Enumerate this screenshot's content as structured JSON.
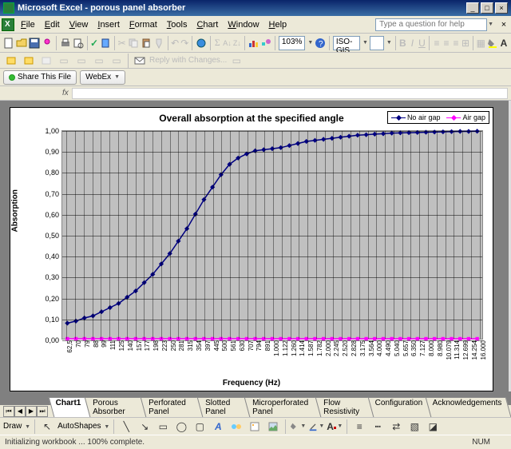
{
  "app": {
    "title": "Microsoft Excel - porous panel absorber"
  },
  "window_buttons": {
    "min": "_",
    "max": "□",
    "close": "×"
  },
  "menu": [
    "File",
    "Edit",
    "View",
    "Insert",
    "Format",
    "Tools",
    "Chart",
    "Window",
    "Help"
  ],
  "helpbox_placeholder": "Type a question for help",
  "toolbar_main": {
    "zoom": "103%",
    "font_name": "ISO-GIS",
    "reply_label": "Reply with Changes..."
  },
  "share_bar": {
    "share": "Share This File",
    "webex": "WebEx"
  },
  "chart": {
    "type": "line",
    "title": "Overall absorption at the specified angle",
    "xlabel": "Frequency (Hz)",
    "ylabel": "Absorption",
    "ylim": [
      0,
      1.0
    ],
    "ytick_step": 0.1,
    "yticks": [
      "0,00",
      "0,10",
      "0,20",
      "0,30",
      "0,40",
      "0,50",
      "0,60",
      "0,70",
      "0,80",
      "0,90",
      "1,00"
    ],
    "xticks": [
      "62,5",
      "70",
      "79",
      "88",
      "99",
      "111",
      "125",
      "140",
      "157",
      "177",
      "198",
      "223",
      "250",
      "281",
      "315",
      "354",
      "397",
      "445",
      "500",
      "561",
      "630",
      "707",
      "794",
      "891",
      "1.000",
      "1.122",
      "1.260",
      "1.414",
      "1.587",
      "1.782",
      "2.000",
      "2.245",
      "2.520",
      "2.828",
      "3.175",
      "3.564",
      "4.000",
      "4.490",
      "5.040",
      "5.657",
      "6.350",
      "7.127",
      "8.000",
      "8.980",
      "10.079",
      "11.314",
      "12.699",
      "14.254",
      "16.000"
    ],
    "plot_bg": "#c0c0c0",
    "grid_color": "#000000",
    "series": [
      {
        "name": "No air gap",
        "color": "#000080",
        "marker": "diamond",
        "values": [
          0.075,
          0.085,
          0.1,
          0.11,
          0.13,
          0.15,
          0.17,
          0.2,
          0.23,
          0.27,
          0.31,
          0.36,
          0.41,
          0.47,
          0.53,
          0.6,
          0.67,
          0.73,
          0.79,
          0.84,
          0.87,
          0.89,
          0.905,
          0.91,
          0.915,
          0.92,
          0.93,
          0.94,
          0.95,
          0.955,
          0.96,
          0.965,
          0.97,
          0.975,
          0.98,
          0.982,
          0.985,
          0.987,
          0.99,
          0.991,
          0.992,
          0.993,
          0.994,
          0.995,
          0.996,
          0.997,
          0.998,
          0.998,
          0.999
        ]
      },
      {
        "name": "Air gap",
        "color": "#ff00ff",
        "marker": "square",
        "values": [
          0,
          0,
          0,
          0,
          0,
          0,
          0,
          0,
          0,
          0,
          0,
          0,
          0,
          0,
          0,
          0,
          0,
          0,
          0,
          0,
          0,
          0,
          0,
          0,
          0,
          0,
          0,
          0,
          0,
          0,
          0,
          0,
          0,
          0,
          0,
          0,
          0,
          0,
          0,
          0,
          0,
          0,
          0,
          0,
          0,
          0,
          0,
          0,
          0
        ]
      }
    ]
  },
  "sheets": [
    "Chart1",
    "Porous Absorber",
    "Perforated Panel",
    "Slotted Panel",
    "Microperforated Panel",
    "Flow Resistivity",
    "Configuration",
    "Acknowledgements"
  ],
  "active_sheet": 0,
  "drawbar": {
    "draw": "Draw",
    "autoshapes": "AutoShapes"
  },
  "status": {
    "left": "Initializing workbook ... 100% complete.",
    "num": "NUM"
  },
  "colors": {
    "titlebar_start": "#0a246a",
    "titlebar_end": "#3a6ea5",
    "ui_bg": "#ece9d8",
    "workspace_bg": "#808080",
    "accent_font_red": "#cc0000",
    "accent_fill_yellow": "#ffff00",
    "accent_line_blue": "#3366cc"
  }
}
